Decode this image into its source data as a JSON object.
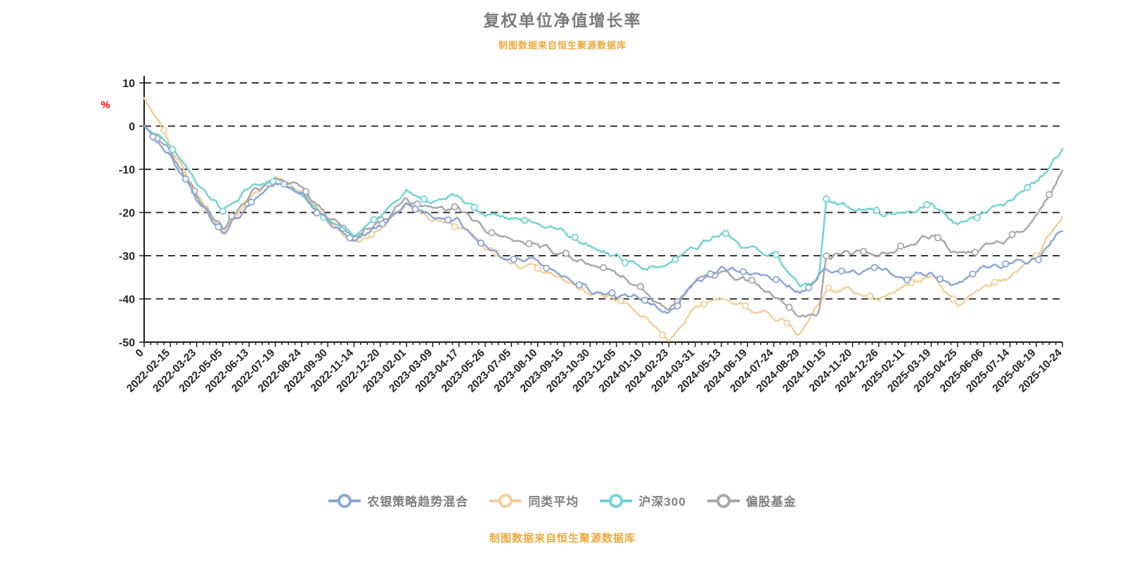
{
  "header": {
    "title": "复权单位净值增长率",
    "subtitle": "制图数据来自恒生聚源数据库"
  },
  "footer": {
    "source_note": "制图数据来自恒生聚源数据库"
  },
  "chart_data": {
    "type": "line",
    "title": "复权单位净值增长率",
    "subtitle": "制图数据来自恒生聚源数据库",
    "source_note": "制图数据来自恒生聚源数据库",
    "ylabel": "%",
    "ylabel_color": "#ff0000",
    "ylim": [
      -50,
      10
    ],
    "yticks": [
      10,
      0,
      -10,
      -20,
      -30,
      -40,
      -50
    ],
    "grid": "dashed-horizontal",
    "legend_position": "bottom",
    "categories": [
      "0",
      "2022-02-15",
      "2022-03-23",
      "2022-05-05",
      "2022-06-13",
      "2022-07-19",
      "2022-08-24",
      "2022-09-30",
      "2022-11-14",
      "2022-12-20",
      "2023-02-01",
      "2023-03-09",
      "2023-04-17",
      "2023-05-26",
      "2023-07-05",
      "2023-08-10",
      "2023-09-15",
      "2023-10-30",
      "2023-12-05",
      "2024-01-10",
      "2024-02-23",
      "2024-03-31",
      "2024-05-13",
      "2024-06-19",
      "2024-07-24",
      "2024-08-29",
      "2024-10-15",
      "2024-11-20",
      "2024-12-26",
      "2025-02-11",
      "2025-03-19",
      "2025-04-25",
      "2025-06-06",
      "2025-07-14",
      "2025-08-19",
      "2025-10-24"
    ],
    "series": [
      {
        "name": "农银策略趋势混合",
        "color": "#8ca6d6",
        "values": [
          0,
          -7,
          -17,
          -25,
          -18,
          -13,
          -16,
          -22,
          -27,
          -23,
          -18,
          -21,
          -22,
          -28,
          -31,
          -31,
          -35,
          -38,
          -39,
          -40,
          -44,
          -36,
          -33,
          -34,
          -35,
          -39,
          -33,
          -34,
          -33,
          -35,
          -34,
          -37,
          -32.5,
          -32,
          -31,
          -24
        ]
      },
      {
        "name": "同类平均",
        "color": "#f2cf9a",
        "values": [
          6.5,
          -4,
          -16,
          -25,
          -17,
          -12,
          -15,
          -22,
          -27,
          -24,
          -18,
          -22,
          -23,
          -28,
          -32,
          -33,
          -36,
          -39,
          -40,
          -44,
          -49.5,
          -42,
          -40,
          -42,
          -44,
          -48,
          -38,
          -38,
          -40,
          -37,
          -35,
          -41,
          -37,
          -35,
          -30,
          -21
        ]
      },
      {
        "name": "沪深300",
        "color": "#74d2d4",
        "values": [
          0,
          -5,
          -13,
          -20,
          -14,
          -13,
          -16,
          -22,
          -25,
          -21,
          -15,
          -18,
          -16,
          -21,
          -21,
          -22,
          -25,
          -28,
          -30,
          -33,
          -32,
          -28,
          -25,
          -28,
          -30,
          -37,
          -17,
          -19,
          -20,
          -21,
          -18,
          -23,
          -20,
          -17,
          -13,
          -5.5
        ]
      },
      {
        "name": "偏股基金",
        "color": "#a8a8a8",
        "values": [
          0,
          -6,
          -16,
          -24,
          -16,
          -12,
          -14,
          -21,
          -26,
          -22,
          -17,
          -19,
          -19,
          -24,
          -26,
          -27,
          -30,
          -32,
          -34,
          -38,
          -43,
          -36,
          -34,
          -36,
          -39,
          -44,
          -30,
          -29,
          -30,
          -28,
          -25,
          -30,
          -28,
          -26,
          -21,
          -10.5
        ]
      }
    ]
  }
}
